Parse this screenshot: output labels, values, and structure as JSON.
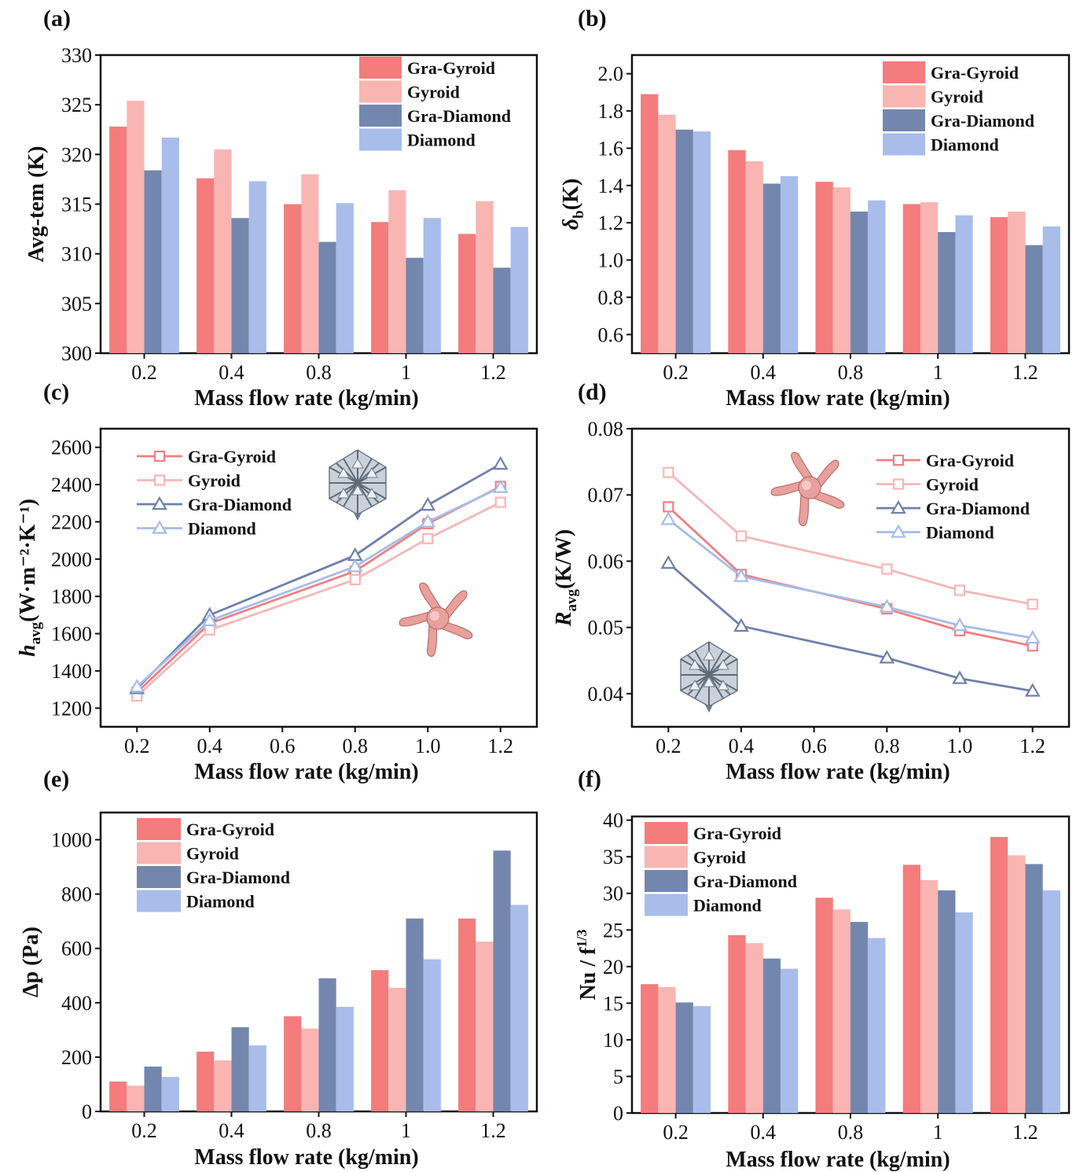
{
  "figure": {
    "series_names": [
      "Gra-Gyroid",
      "Gyroid",
      "Gra-Diamond",
      "Diamond"
    ],
    "colors": {
      "bar": [
        "#F47C7C",
        "#F9B5B2",
        "#7387AE",
        "#A9BDEA"
      ],
      "line": [
        "#F07F83",
        "#F8B6B6",
        "#6F80AC",
        "#A5BCE9"
      ],
      "axis": "#111111",
      "gyroid_model": "#E8A09C",
      "diamond_model": "#9EAAB6"
    },
    "icons": [
      "gyroid-structure-icon",
      "diamond-structure-icon"
    ]
  },
  "chart_data": [
    {
      "id": "a",
      "panel_label": "(a)",
      "type": "bar",
      "xlabel": "Mass flow rate (kg/min)",
      "ylabel": "Avg-tem (K)",
      "categories": [
        "0.2",
        "0.4",
        "0.8",
        "1",
        "1.2"
      ],
      "ylim": [
        300,
        330
      ],
      "yticks": [
        "300",
        "305",
        "310",
        "315",
        "320",
        "325",
        "330"
      ],
      "legend_position": "top-right",
      "series": [
        {
          "name": "Gra-Gyroid",
          "values": [
            322.8,
            317.6,
            315.0,
            313.2,
            312.0
          ]
        },
        {
          "name": "Gyroid",
          "values": [
            325.4,
            320.5,
            318.0,
            316.4,
            315.3
          ]
        },
        {
          "name": "Gra-Diamond",
          "values": [
            318.4,
            313.6,
            311.2,
            309.6,
            308.6
          ]
        },
        {
          "name": "Diamond",
          "values": [
            321.7,
            317.3,
            315.1,
            313.6,
            312.7
          ]
        }
      ]
    },
    {
      "id": "b",
      "panel_label": "(b)",
      "type": "bar",
      "xlabel": "Mass flow rate (kg/min)",
      "ylabel": "δ",
      "ylabel_sub": "b",
      "ylabel_unit": "(K)",
      "categories": [
        "0.2",
        "0.4",
        "0.8",
        "1",
        "1.2"
      ],
      "ylim": [
        0.5,
        2.1
      ],
      "yticks": [
        "0.6",
        "0.8",
        "1.0",
        "1.2",
        "1.4",
        "1.6",
        "1.8",
        "2.0"
      ],
      "legend_position": "top-right",
      "series": [
        {
          "name": "Gra-Gyroid",
          "values": [
            1.89,
            1.59,
            1.42,
            1.3,
            1.23
          ]
        },
        {
          "name": "Gyroid",
          "values": [
            1.78,
            1.53,
            1.39,
            1.31,
            1.26
          ]
        },
        {
          "name": "Gra-Diamond",
          "values": [
            1.7,
            1.41,
            1.26,
            1.15,
            1.08
          ]
        },
        {
          "name": "Diamond",
          "values": [
            1.69,
            1.45,
            1.32,
            1.24,
            1.18
          ]
        }
      ]
    },
    {
      "id": "c",
      "panel_label": "(c)",
      "type": "line",
      "xlabel": "Mass flow rate (kg/min)",
      "ylabel": "h",
      "ylabel_sub": "avg",
      "ylabel_unit": "(W·m⁻²·K⁻¹)",
      "x": [
        0.2,
        0.4,
        0.8,
        1.0,
        1.2
      ],
      "xlim": [
        0.1,
        1.3
      ],
      "xticks": [
        "0.2",
        "0.4",
        "0.6",
        "0.8",
        "1.0",
        "1.2"
      ],
      "ylim": [
        1100,
        2700
      ],
      "yticks": [
        "1200",
        "1400",
        "1600",
        "1800",
        "2000",
        "2200",
        "2400",
        "2600"
      ],
      "legend_position": "top-left",
      "series": [
        {
          "name": "Gra-Gyroid",
          "marker": "square",
          "values": [
            1285,
            1655,
            1935,
            2190,
            2390
          ]
        },
        {
          "name": "Gyroid",
          "marker": "square",
          "values": [
            1265,
            1620,
            1890,
            2110,
            2305
          ]
        },
        {
          "name": "Gra-Diamond",
          "marker": "triangle",
          "values": [
            1305,
            1700,
            2020,
            2290,
            2510
          ]
        },
        {
          "name": "Diamond",
          "marker": "triangle",
          "values": [
            1315,
            1670,
            1960,
            2200,
            2385
          ]
        }
      ]
    },
    {
      "id": "d",
      "panel_label": "(d)",
      "type": "line",
      "xlabel": "Mass flow rate (kg/min)",
      "ylabel": "R",
      "ylabel_sub": "avg",
      "ylabel_unit": "(K/W)",
      "x": [
        0.2,
        0.4,
        0.8,
        1.0,
        1.2
      ],
      "xlim": [
        0.1,
        1.3
      ],
      "xticks": [
        "0.2",
        "0.4",
        "0.6",
        "0.8",
        "1.0",
        "1.2"
      ],
      "ylim": [
        0.035,
        0.08
      ],
      "yticks": [
        "0.04",
        "0.05",
        "0.06",
        "0.07",
        "0.08"
      ],
      "legend_position": "top-right",
      "series": [
        {
          "name": "Gra-Gyroid",
          "marker": "square",
          "values": [
            0.0682,
            0.058,
            0.0528,
            0.0495,
            0.0472
          ]
        },
        {
          "name": "Gyroid",
          "marker": "square",
          "values": [
            0.0734,
            0.0638,
            0.0588,
            0.0556,
            0.0535
          ]
        },
        {
          "name": "Gra-Diamond",
          "marker": "triangle",
          "values": [
            0.0597,
            0.0502,
            0.0454,
            0.0423,
            0.0404
          ]
        },
        {
          "name": "Diamond",
          "marker": "triangle",
          "values": [
            0.0663,
            0.0577,
            0.0531,
            0.0503,
            0.0484
          ]
        }
      ]
    },
    {
      "id": "e",
      "panel_label": "(e)",
      "type": "bar",
      "xlabel": "Mass flow rate (kg/min)",
      "ylabel": "Δp (Pa)",
      "categories": [
        "0.2",
        "0.4",
        "0.8",
        "1",
        "1.2"
      ],
      "ylim": [
        0,
        1100
      ],
      "yticks": [
        "0",
        "200",
        "400",
        "600",
        "800",
        "1000"
      ],
      "legend_position": "top-left",
      "series": [
        {
          "name": "Gra-Gyroid",
          "values": [
            110,
            220,
            350,
            520,
            710
          ]
        },
        {
          "name": "Gyroid",
          "values": [
            95,
            188,
            305,
            455,
            625
          ]
        },
        {
          "name": "Gra-Diamond",
          "values": [
            165,
            310,
            490,
            710,
            960
          ]
        },
        {
          "name": "Diamond",
          "values": [
            127,
            243,
            385,
            560,
            760
          ]
        }
      ]
    },
    {
      "id": "f",
      "panel_label": "(f)",
      "type": "bar",
      "xlabel": "Mass flow rate (kg/min)",
      "ylabel": "Nu / f",
      "ylabel_sup": "1/3",
      "categories": [
        "0.2",
        "0.4",
        "0.8",
        "1",
        "1.2"
      ],
      "ylim": [
        0,
        40.5
      ],
      "yticks": [
        "0",
        "5",
        "10",
        "15",
        "20",
        "25",
        "30",
        "35",
        "40"
      ],
      "legend_position": "top-left",
      "series": [
        {
          "name": "Gra-Gyroid",
          "values": [
            17.6,
            24.3,
            29.4,
            33.9,
            37.7
          ]
        },
        {
          "name": "Gyroid",
          "values": [
            17.2,
            23.2,
            27.8,
            31.8,
            35.2
          ]
        },
        {
          "name": "Gra-Diamond",
          "values": [
            15.1,
            21.1,
            26.1,
            30.4,
            34.0
          ]
        },
        {
          "name": "Diamond",
          "values": [
            14.6,
            19.7,
            23.9,
            27.4,
            30.4
          ]
        }
      ]
    }
  ]
}
